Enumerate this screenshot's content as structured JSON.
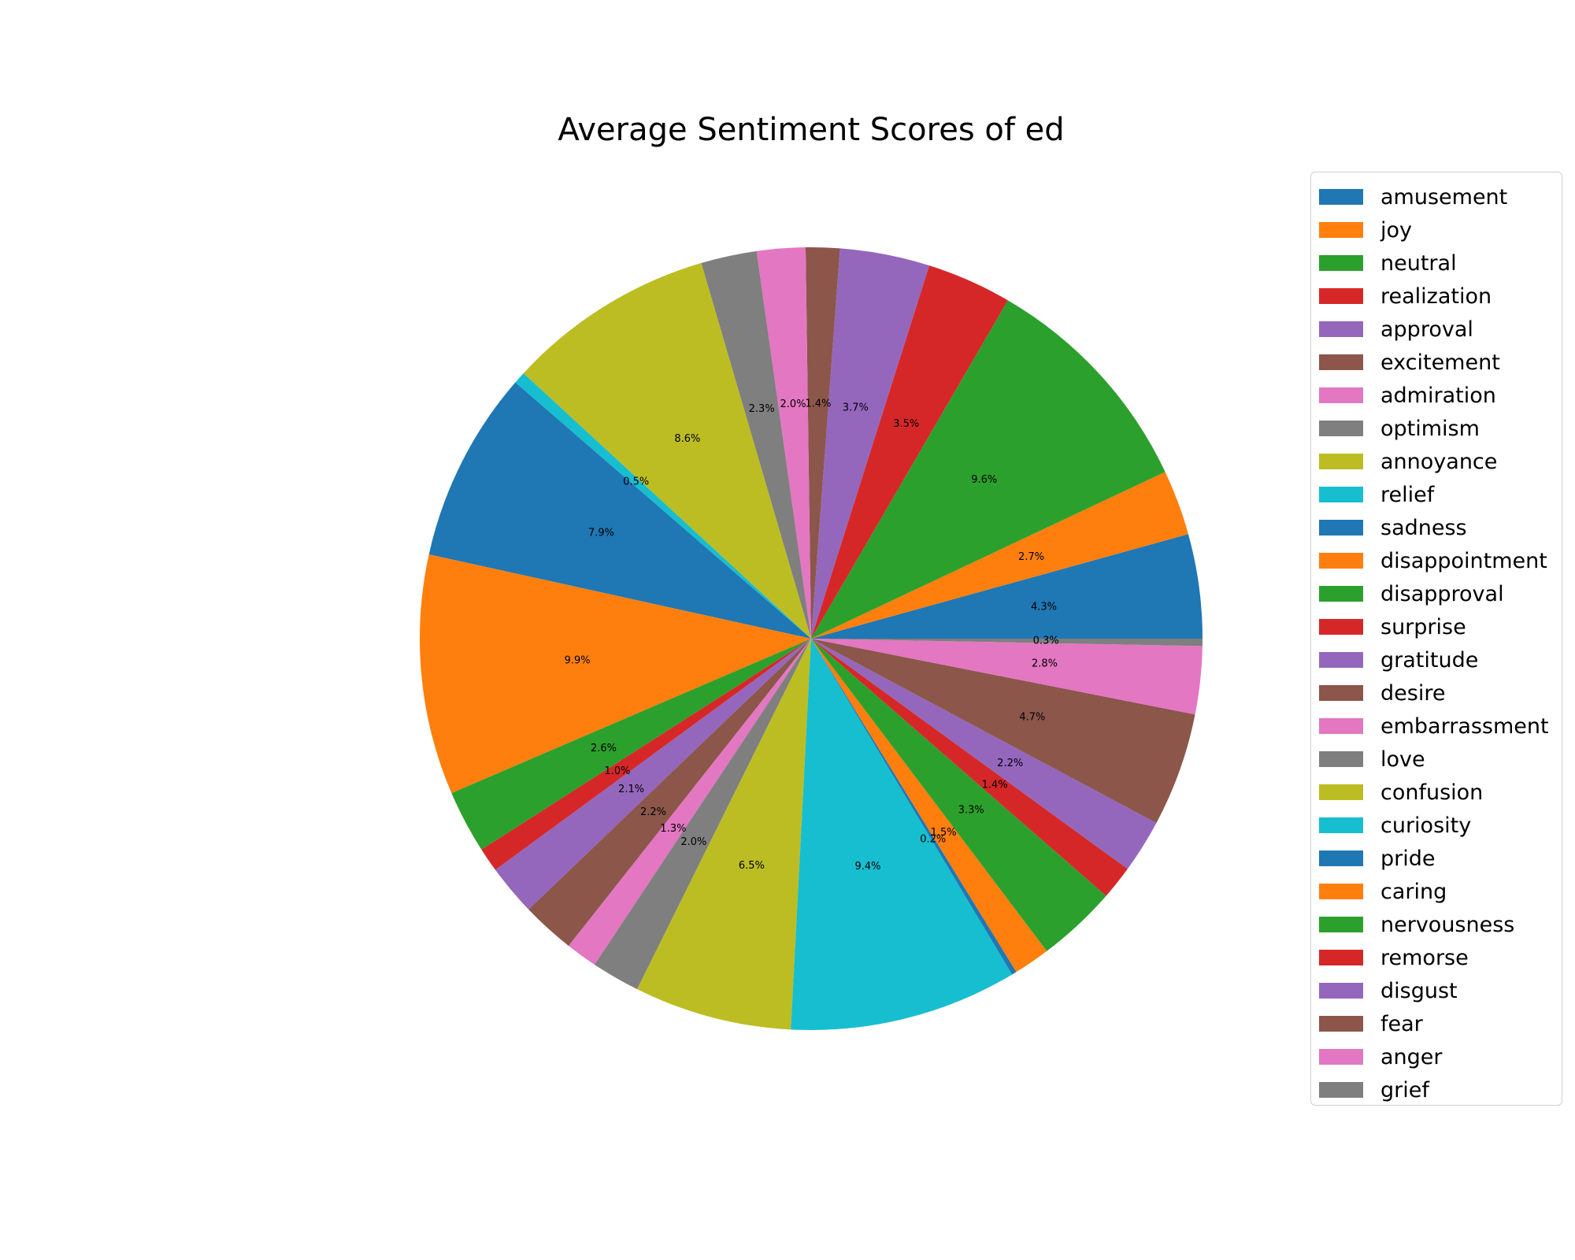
{
  "chart_data": {
    "type": "pie",
    "title": "Average Sentiment Scores of ed",
    "start_angle_deg": 0,
    "direction": "counterclockwise",
    "legend_position": "right",
    "slices": [
      {
        "label": "amusement",
        "value": 4.3,
        "pct_label": "4.3%",
        "color": "#1f77b4"
      },
      {
        "label": "joy",
        "value": 2.7,
        "pct_label": "2.7%",
        "color": "#ff7f0e"
      },
      {
        "label": "neutral",
        "value": 9.6,
        "pct_label": "9.6%",
        "color": "#2ca02c"
      },
      {
        "label": "realization",
        "value": 3.5,
        "pct_label": "3.5%",
        "color": "#d62728"
      },
      {
        "label": "approval",
        "value": 3.7,
        "pct_label": "3.7%",
        "color": "#9467bd"
      },
      {
        "label": "excitement",
        "value": 1.4,
        "pct_label": "1.4%",
        "color": "#8c564b"
      },
      {
        "label": "admiration",
        "value": 2.0,
        "pct_label": "2.0%",
        "color": "#e377c2"
      },
      {
        "label": "optimism",
        "value": 2.3,
        "pct_label": "2.3%",
        "color": "#7f7f7f"
      },
      {
        "label": "annoyance",
        "value": 8.6,
        "pct_label": "8.6%",
        "color": "#bcbd22"
      },
      {
        "label": "relief",
        "value": 0.5,
        "pct_label": "0.5%",
        "color": "#17becf"
      },
      {
        "label": "sadness",
        "value": 7.9,
        "pct_label": "7.9%",
        "color": "#1f77b4"
      },
      {
        "label": "disappointment",
        "value": 9.9,
        "pct_label": "9.9%",
        "color": "#ff7f0e"
      },
      {
        "label": "disapproval",
        "value": 2.6,
        "pct_label": "2.6%",
        "color": "#2ca02c"
      },
      {
        "label": "surprise",
        "value": 1.0,
        "pct_label": "1.0%",
        "color": "#d62728"
      },
      {
        "label": "gratitude",
        "value": 2.1,
        "pct_label": "2.1%",
        "color": "#9467bd"
      },
      {
        "label": "desire",
        "value": 2.2,
        "pct_label": "2.2%",
        "color": "#8c564b"
      },
      {
        "label": "embarrassment",
        "value": 1.3,
        "pct_label": "1.3%",
        "color": "#e377c2"
      },
      {
        "label": "love",
        "value": 2.0,
        "pct_label": "2.0%",
        "color": "#7f7f7f"
      },
      {
        "label": "confusion",
        "value": 6.5,
        "pct_label": "6.5%",
        "color": "#bcbd22"
      },
      {
        "label": "curiosity",
        "value": 9.4,
        "pct_label": "9.4%",
        "color": "#17becf"
      },
      {
        "label": "pride",
        "value": 0.2,
        "pct_label": "0.2%",
        "color": "#1f77b4"
      },
      {
        "label": "caring",
        "value": 1.5,
        "pct_label": "1.5%",
        "color": "#ff7f0e"
      },
      {
        "label": "nervousness",
        "value": 3.3,
        "pct_label": "3.3%",
        "color": "#2ca02c"
      },
      {
        "label": "remorse",
        "value": 1.4,
        "pct_label": "1.4%",
        "color": "#d62728"
      },
      {
        "label": "disgust",
        "value": 2.2,
        "pct_label": "2.2%",
        "color": "#9467bd"
      },
      {
        "label": "fear",
        "value": 4.7,
        "pct_label": "4.7%",
        "color": "#8c564b"
      },
      {
        "label": "anger",
        "value": 2.8,
        "pct_label": "2.8%",
        "color": "#e377c2"
      },
      {
        "label": "grief",
        "value": 0.3,
        "pct_label": "0.3%",
        "color": "#7f7f7f"
      }
    ]
  }
}
